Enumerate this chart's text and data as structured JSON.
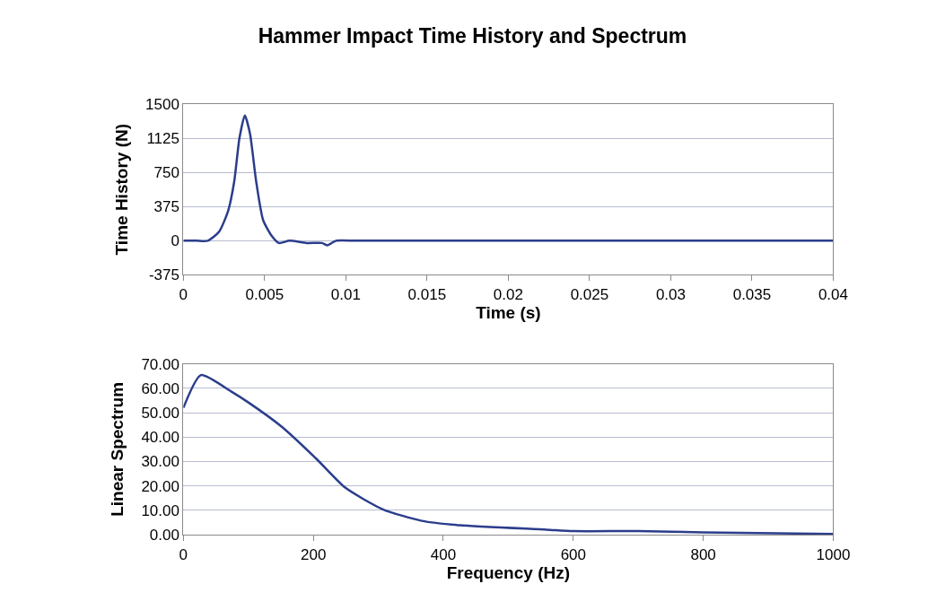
{
  "chart_data": [
    {
      "type": "line",
      "title": "Hammer Impact Time History and Spectrum",
      "xlabel": "Time (s)",
      "ylabel": "Time History (N)",
      "x": [
        0,
        0.0008,
        0.0015,
        0.0022,
        0.00275,
        0.00313,
        0.00345,
        0.00378,
        0.0041,
        0.00448,
        0.00491,
        0.00545,
        0.00588,
        0.00653,
        0.0076,
        0.00853,
        0.00885,
        0.0094,
        0.0106,
        0.015,
        0.02,
        0.025,
        0.03,
        0.035,
        0.04
      ],
      "series": [
        {
          "color": "#2b3d8c",
          "values": [
            0,
            0,
            0,
            100,
            325,
            650,
            1125,
            1375,
            1175,
            650,
            225,
            50,
            -25,
            0,
            -25,
            -25,
            -50,
            0,
            0,
            0,
            0,
            0,
            0,
            0,
            0
          ]
        }
      ],
      "xlim": [
        0,
        0.04
      ],
      "xticks": [
        0,
        0.005,
        0.01,
        0.015,
        0.02,
        0.025,
        0.03,
        0.035,
        0.04
      ],
      "ylim": [
        -375,
        1500
      ],
      "yticks": [
        -375,
        0,
        375,
        750,
        1125,
        1500
      ],
      "grid": "y",
      "marker": "none",
      "line_style": "solid"
    },
    {
      "type": "line",
      "xlabel": "Frequency (Hz)",
      "ylabel": "Linear Spectrum",
      "x": [
        0,
        27,
        74,
        101,
        151,
        205,
        249,
        307,
        367,
        425,
        559,
        600,
        700,
        800,
        1000
      ],
      "series": [
        {
          "color": "#2b3d8c",
          "values": [
            52,
            65.4,
            58.6,
            54,
            44.3,
            31,
            19.3,
            10.4,
            5.7,
            3.9,
            2.1,
            1.5,
            1.5,
            1,
            0.3
          ]
        }
      ],
      "xlim": [
        0,
        1000
      ],
      "xticks": [
        0,
        200,
        400,
        600,
        800,
        1000
      ],
      "ylim": [
        0,
        70
      ],
      "yticks": [
        {
          "value": 0,
          "label": "0.00"
        },
        {
          "value": 10,
          "label": "10.00"
        },
        {
          "value": 20,
          "label": "20.00"
        },
        {
          "value": 30,
          "label": "30.00"
        },
        {
          "value": 40,
          "label": "40.00"
        },
        {
          "value": 50,
          "label": "50.00"
        },
        {
          "value": 60,
          "label": "60.00"
        },
        {
          "value": 70,
          "label": "70.00"
        }
      ],
      "grid": "y",
      "marker": "none",
      "line_style": "solid"
    }
  ]
}
